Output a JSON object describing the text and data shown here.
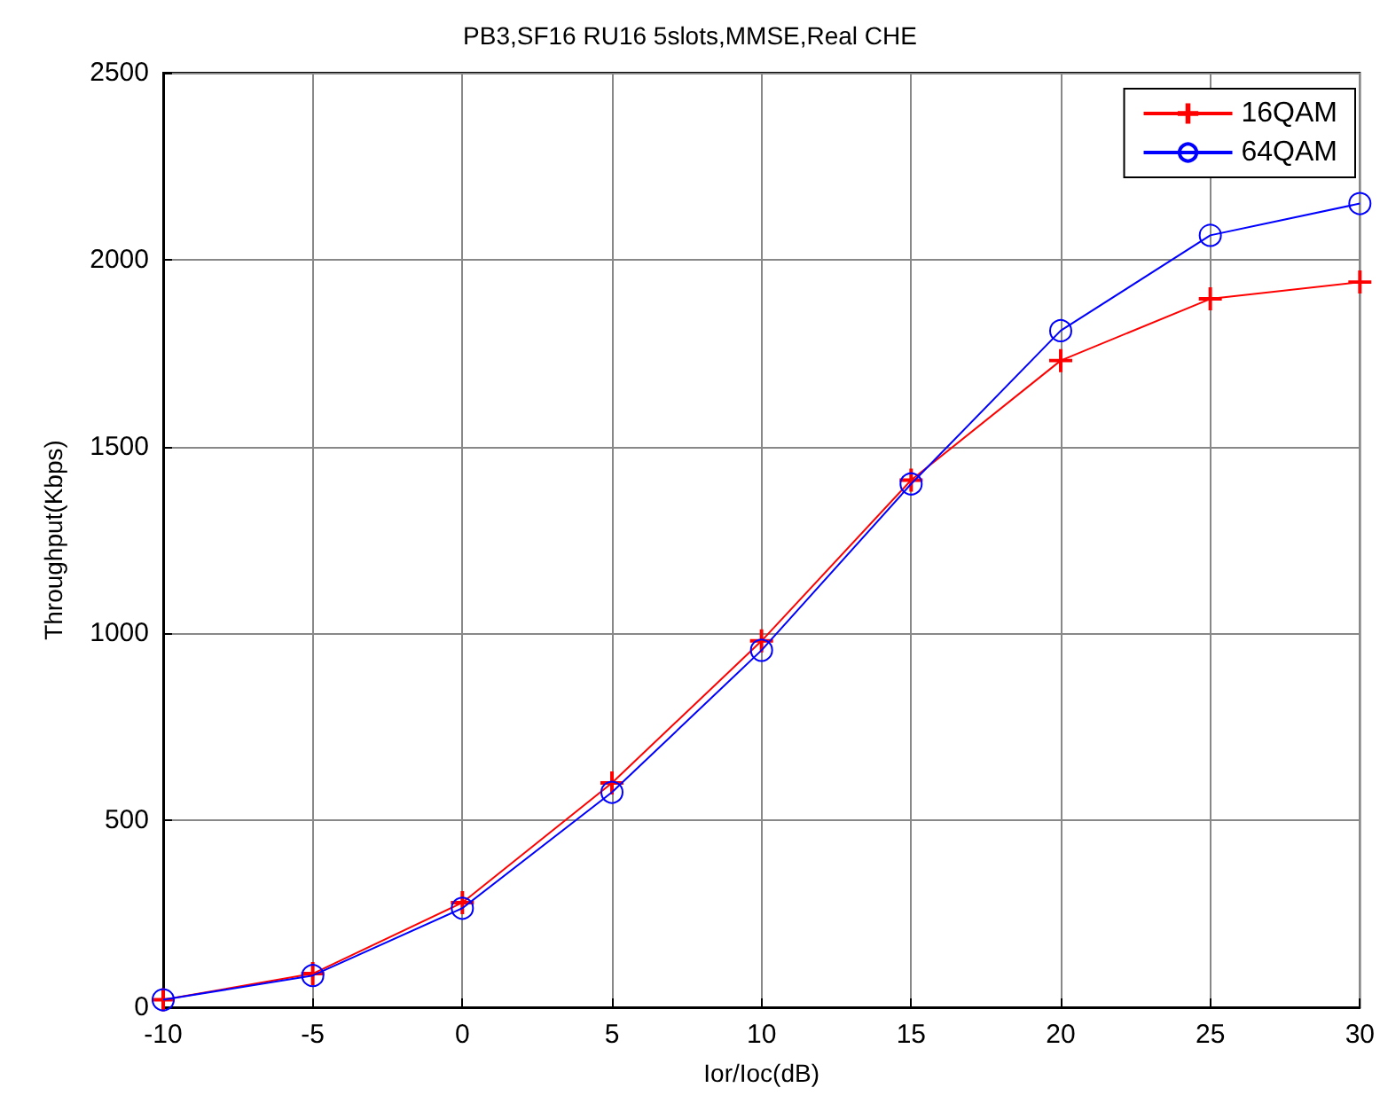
{
  "chart_data": {
    "type": "line",
    "title": "PB3,SF16 RU16 5slots,MMSE,Real CHE",
    "xlabel": "Ior/Ioc(dB)",
    "ylabel": "Throughput(Kbps)",
    "x": [
      -10,
      -5,
      0,
      5,
      10,
      15,
      20,
      25,
      30
    ],
    "series": [
      {
        "name": "16QAM",
        "color": "#ff0000",
        "marker": "cross",
        "values": [
          20,
          90,
          280,
          600,
          980,
          1410,
          1730,
          1895,
          1940
        ]
      },
      {
        "name": "64QAM",
        "color": "#0000ff",
        "marker": "circle",
        "values": [
          20,
          85,
          265,
          575,
          955,
          1400,
          1810,
          2065,
          2150
        ]
      }
    ],
    "xlim": [
      -10,
      30
    ],
    "xticks": [
      -10,
      -5,
      0,
      5,
      10,
      15,
      20,
      25,
      30
    ],
    "ylim": [
      0,
      2500
    ],
    "yticks": [
      0,
      500,
      1000,
      1500,
      2000,
      2500
    ],
    "grid": true,
    "legend": "top right",
    "line_style": "solid"
  }
}
